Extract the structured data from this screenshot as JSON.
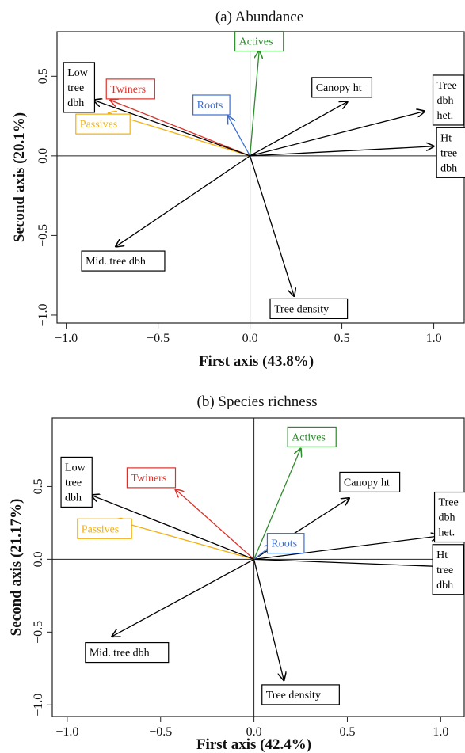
{
  "chart_data": [
    {
      "type": "biplot",
      "title": "(a) Abundance",
      "xlabel": "First axis (43.8%)",
      "ylabel": "Second axis (20.1%)",
      "xlim": [
        -1.05,
        1.17
      ],
      "ylim": [
        -1.05,
        0.78
      ],
      "xticks": [
        -1.0,
        -0.5,
        0.0,
        0.5,
        1.0
      ],
      "xtick_labels": [
        "−1.0",
        "−0.5",
        "0.0",
        "0.5",
        "1.0"
      ],
      "yticks": [
        -1.0,
        -0.5,
        0.0,
        0.5
      ],
      "ytick_labels": [
        "−1.0",
        "−0.5",
        "0.0",
        "0.5"
      ],
      "vectors": [
        {
          "label": [
            "Actives"
          ],
          "x": 0.05,
          "y": 0.66,
          "color": "#2e8b2e",
          "lx": 0.05,
          "ly": 0.72
        },
        {
          "label": [
            "Canopy ht"
          ],
          "x": 0.53,
          "y": 0.34,
          "color": "#000000",
          "lx": 0.5,
          "ly": 0.43
        },
        {
          "label": [
            "Tree",
            "dbh",
            "het."
          ],
          "x": 0.95,
          "y": 0.28,
          "color": "#000000",
          "lx": 1.08,
          "ly": 0.35
        },
        {
          "label": [
            "Ht",
            "tree",
            "dbh"
          ],
          "x": 1.0,
          "y": 0.06,
          "color": "#000000",
          "lx": 1.1,
          "ly": 0.02
        },
        {
          "label": [
            "Roots"
          ],
          "x": -0.12,
          "y": 0.25,
          "color": "#3c6fd1",
          "lx": -0.21,
          "ly": 0.32
        },
        {
          "label": [
            "Twiners"
          ],
          "x": -0.76,
          "y": 0.35,
          "color": "#d8322a",
          "lx": -0.65,
          "ly": 0.42
        },
        {
          "label": [
            "Passives"
          ],
          "x": -0.77,
          "y": 0.27,
          "color": "#f2b010",
          "lx": -0.8,
          "ly": 0.2
        },
        {
          "label": [
            "Low",
            "tree",
            "dbh"
          ],
          "x": -0.85,
          "y": 0.35,
          "color": "#000000",
          "lx": -0.93,
          "ly": 0.43
        },
        {
          "label": [
            "Mid. tree dbh"
          ],
          "x": -0.73,
          "y": -0.57,
          "color": "#000000",
          "lx": -0.69,
          "ly": -0.66
        },
        {
          "label": [
            "Tree density"
          ],
          "x": 0.24,
          "y": -0.88,
          "color": "#000000",
          "lx": 0.32,
          "ly": -0.96
        }
      ]
    },
    {
      "type": "biplot",
      "title": "(b) Species richness",
      "xlabel": "First axis (42.4%)",
      "ylabel": "Second axis (21.17%)",
      "xlim": [
        -1.08,
        1.13
      ],
      "ylim": [
        -1.08,
        0.97
      ],
      "xticks": [
        -1.0,
        -0.5,
        0.0,
        0.5,
        1.0
      ],
      "xtick_labels": [
        "−1.0",
        "−0.5",
        "0.0",
        "0.5",
        "1.0"
      ],
      "yticks": [
        -1.0,
        -0.5,
        0.0,
        0.5
      ],
      "ytick_labels": [
        "−1.0",
        "−0.5",
        "0.0",
        "0.5"
      ],
      "vectors": [
        {
          "label": [
            "Actives"
          ],
          "x": 0.25,
          "y": 0.76,
          "color": "#2e8b2e",
          "lx": 0.31,
          "ly": 0.84
        },
        {
          "label": [
            "Canopy ht"
          ],
          "x": 0.51,
          "y": 0.42,
          "color": "#000000",
          "lx": 0.62,
          "ly": 0.53
        },
        {
          "label": [
            "Tree",
            "dbh",
            "het."
          ],
          "x": 0.99,
          "y": 0.16,
          "color": "#000000",
          "lx": 1.05,
          "ly": 0.29
        },
        {
          "label": [
            "Ht",
            "tree",
            "dbh"
          ],
          "x": 1.0,
          "y": -0.05,
          "color": "#000000",
          "lx": 1.04,
          "ly": -0.07
        },
        {
          "label": [
            "Roots"
          ],
          "x": 0.1,
          "y": 0.1,
          "color": "#3c6fd1",
          "lx": 0.17,
          "ly": 0.11
        },
        {
          "label": [
            "Twiners"
          ],
          "x": -0.42,
          "y": 0.48,
          "color": "#d8322a",
          "lx": -0.55,
          "ly": 0.56
        },
        {
          "label": [
            "Passives"
          ],
          "x": -0.75,
          "y": 0.27,
          "color": "#f2b010",
          "lx": -0.8,
          "ly": 0.21
        },
        {
          "label": [
            "Low",
            "tree",
            "dbh"
          ],
          "x": -0.87,
          "y": 0.44,
          "color": "#000000",
          "lx": -0.95,
          "ly": 0.53
        },
        {
          "label": [
            "Mid. tree dbh"
          ],
          "x": -0.76,
          "y": -0.53,
          "color": "#000000",
          "lx": -0.68,
          "ly": -0.64
        },
        {
          "label": [
            "Tree density"
          ],
          "x": 0.16,
          "y": -0.83,
          "color": "#000000",
          "lx": 0.25,
          "ly": -0.93
        }
      ]
    }
  ]
}
